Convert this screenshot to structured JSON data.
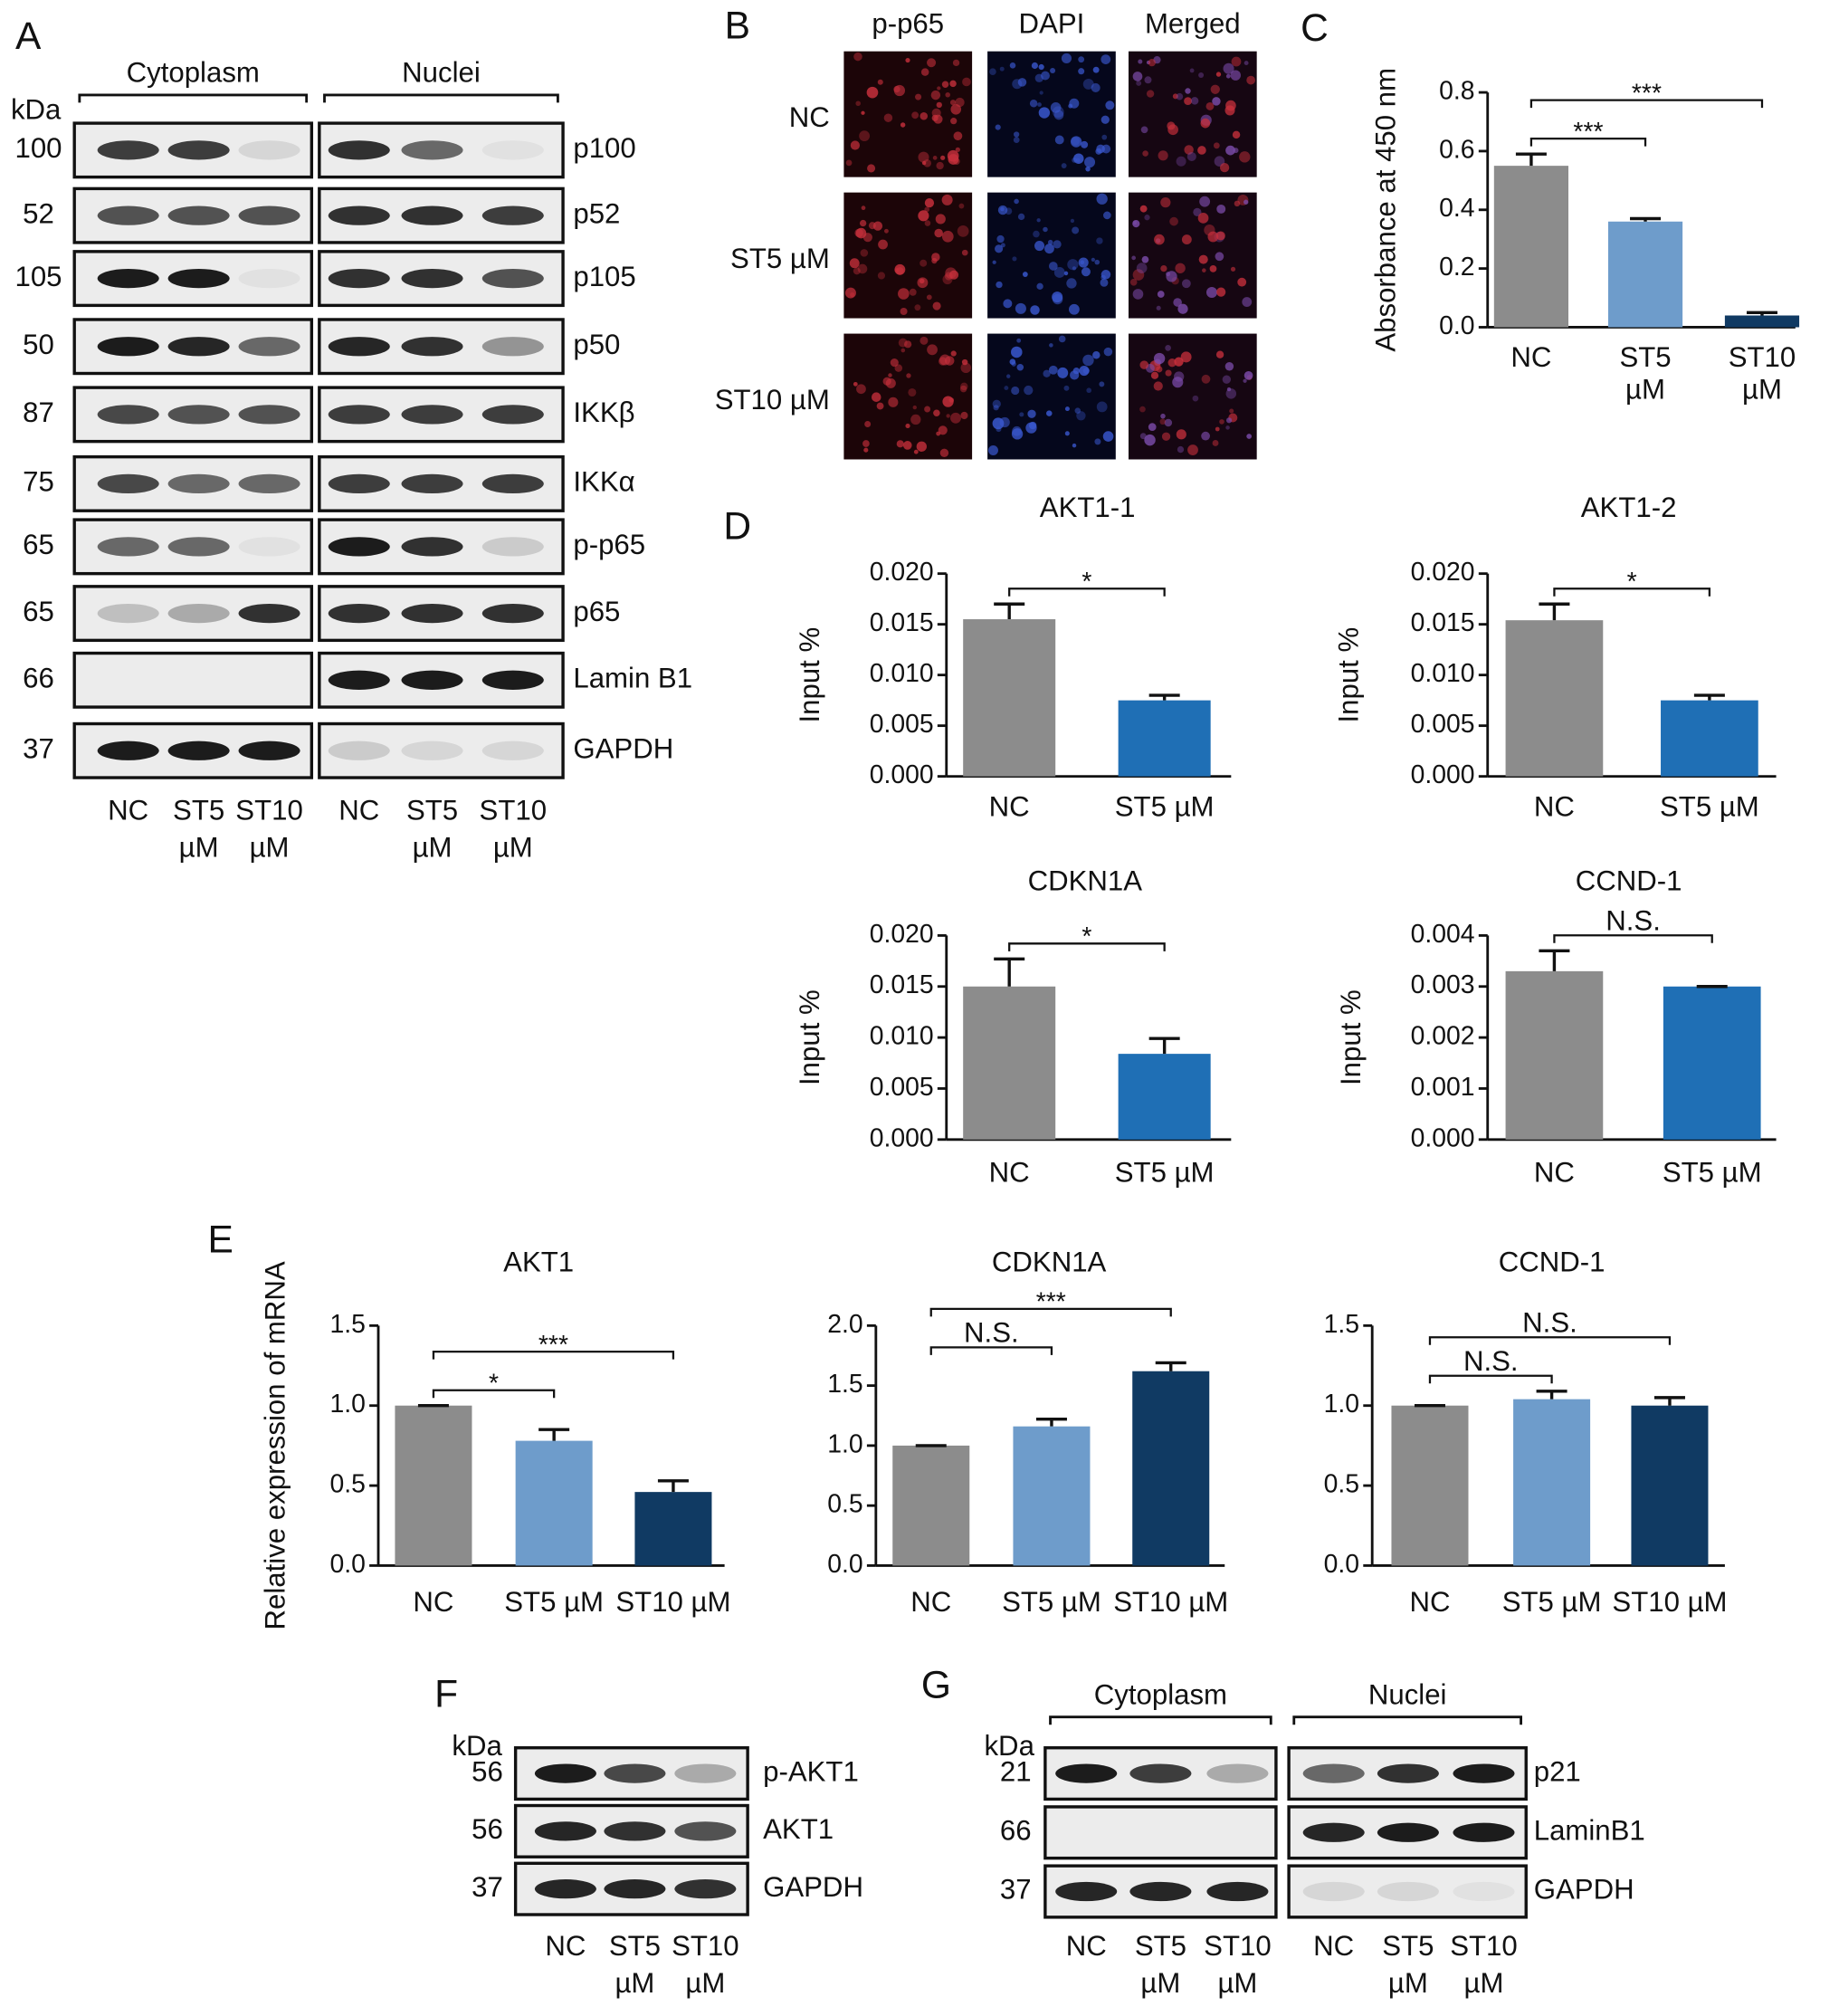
{
  "panel_labels": [
    "A",
    "B",
    "C",
    "D",
    "E",
    "F",
    "G"
  ],
  "blot_a": {
    "unit": "kDa",
    "sections": [
      "Cytoplasm",
      "Nuclei"
    ],
    "rows": [
      {
        "kda": 100,
        "protein": "p100"
      },
      {
        "kda": 52,
        "protein": "p52"
      },
      {
        "kda": 105,
        "protein": "p105"
      },
      {
        "kda": 50,
        "protein": "p50"
      },
      {
        "kda": 87,
        "protein": "IKKβ"
      },
      {
        "kda": 75,
        "protein": "IKKα"
      },
      {
        "kda": 65,
        "protein": "p-p65"
      },
      {
        "kda": 65,
        "protein": "p65"
      },
      {
        "kda": 66,
        "protein": "Lamin B1"
      },
      {
        "kda": 37,
        "protein": "GAPDH"
      }
    ],
    "lanes": [
      [
        "NC"
      ],
      [
        "ST5",
        "µM"
      ],
      [
        "ST10",
        "µM"
      ]
    ]
  },
  "imaging_b": {
    "columns": [
      "p-p65",
      "DAPI",
      "Merged"
    ],
    "rows": [
      "NC",
      "ST5 µM",
      "ST10 µM"
    ]
  },
  "chart_data": [
    {
      "type": "bar",
      "y_label": "Absorbance at 450 nm",
      "categories": [
        "NC",
        "ST5 µM",
        "ST10 µM"
      ],
      "wrap_labels": true,
      "values": [
        0.55,
        0.36,
        0.04
      ],
      "errors": [
        0.04,
        0.01,
        0.01
      ],
      "colors": [
        "#8c8c8c",
        "#6e9ccb",
        "#103a63"
      ],
      "significance": [
        null,
        "***",
        "***"
      ],
      "ylim": [
        0,
        0.8
      ],
      "yticks": [
        {
          "value": 0,
          "label": "0.0"
        },
        0.2,
        0.4,
        0.6,
        0.8
      ]
    },
    {
      "type": "bar",
      "title": "AKT1-1",
      "y_label": "Input %",
      "categories": [
        "NC",
        "ST5 µM"
      ],
      "values": [
        0.0155,
        0.0075
      ],
      "errors": [
        0.0015,
        0.0005
      ],
      "colors": [
        "#8c8c8c",
        "#1f6fb5"
      ],
      "significance": [
        null,
        "*"
      ],
      "ylim": [
        0,
        0.02
      ],
      "yticks": [
        {
          "value": 0,
          "label": "0.000"
        },
        {
          "value": 0.005,
          "label": "0.005"
        },
        {
          "value": 0.01,
          "label": "0.010"
        },
        {
          "value": 0.015,
          "label": "0.015"
        },
        {
          "value": 0.02,
          "label": "0.020"
        }
      ]
    },
    {
      "type": "bar",
      "title": "AKT1-2",
      "y_label": "Input %",
      "categories": [
        "NC",
        "ST5 µM"
      ],
      "values": [
        0.0154,
        0.0075
      ],
      "errors": [
        0.0016,
        0.0005
      ],
      "colors": [
        "#8c8c8c",
        "#1f6fb5"
      ],
      "significance": [
        null,
        "*"
      ],
      "ylim": [
        0,
        0.02
      ],
      "yticks": [
        {
          "value": 0,
          "label": "0.000"
        },
        {
          "value": 0.005,
          "label": "0.005"
        },
        {
          "value": 0.01,
          "label": "0.010"
        },
        {
          "value": 0.015,
          "label": "0.015"
        },
        {
          "value": 0.02,
          "label": "0.020"
        }
      ]
    },
    {
      "type": "bar",
      "title": "CDKN1A",
      "y_label": "Input %",
      "categories": [
        "NC",
        "ST5 µM"
      ],
      "values": [
        0.015,
        0.0084
      ],
      "errors": [
        0.0027,
        0.0015
      ],
      "colors": [
        "#8c8c8c",
        "#1f6fb5"
      ],
      "significance": [
        null,
        "*"
      ],
      "ylim": [
        0,
        0.02
      ],
      "yticks": [
        {
          "value": 0,
          "label": "0.000"
        },
        {
          "value": 0.005,
          "label": "0.005"
        },
        {
          "value": 0.01,
          "label": "0.010"
        },
        {
          "value": 0.015,
          "label": "0.015"
        },
        {
          "value": 0.02,
          "label": "0.020"
        }
      ]
    },
    {
      "type": "bar",
      "title": "CCND-1",
      "y_label": "Input %",
      "categories": [
        "NC",
        "ST5 µM"
      ],
      "values": [
        0.0033,
        0.003
      ],
      "errors": [
        0.0004,
        0
      ],
      "colors": [
        "#8c8c8c",
        "#1f6fb5"
      ],
      "significance": [
        null,
        "N.S."
      ],
      "ylim": [
        0,
        0.004
      ],
      "yticks": [
        {
          "value": 0,
          "label": "0.000"
        },
        {
          "value": 0.001,
          "label": "0.001"
        },
        {
          "value": 0.002,
          "label": "0.002"
        },
        {
          "value": 0.003,
          "label": "0.003"
        },
        {
          "value": 0.004,
          "label": "0.004"
        }
      ]
    },
    {
      "type": "bar",
      "title": "AKT1",
      "y_label": "Relative expression of mRNA",
      "categories": [
        "NC",
        "ST5 µM",
        "ST10 µM"
      ],
      "values": [
        1.0,
        0.78,
        0.46
      ],
      "errors": [
        0,
        0.07,
        0.07
      ],
      "colors": [
        "#8c8c8c",
        "#6e9ccb",
        "#103a63"
      ],
      "significance": [
        null,
        "*",
        "***"
      ],
      "ylim": [
        0,
        1.5
      ],
      "yticks": [
        {
          "value": 0,
          "label": "0.0"
        },
        0.5,
        {
          "value": 1,
          "label": "1.0"
        },
        1.5
      ]
    },
    {
      "type": "bar",
      "title": "CDKN1A",
      "categories": [
        "NC",
        "ST5 µM",
        "ST10 µM"
      ],
      "values": [
        1.0,
        1.16,
        1.62
      ],
      "errors": [
        0,
        0.06,
        0.07
      ],
      "colors": [
        "#8c8c8c",
        "#6e9ccb",
        "#103a63"
      ],
      "significance": [
        null,
        "N.S.",
        "***"
      ],
      "ylim": [
        0,
        2
      ],
      "yticks": [
        {
          "value": 0,
          "label": "0.0"
        },
        0.5,
        {
          "value": 1,
          "label": "1.0"
        },
        1.5,
        {
          "value": 2,
          "label": "2.0"
        }
      ]
    },
    {
      "type": "bar",
      "title": "CCND-1",
      "categories": [
        "NC",
        "ST5 µM",
        "ST10 µM"
      ],
      "values": [
        1.0,
        1.04,
        1.0
      ],
      "errors": [
        0,
        0.05,
        0.05
      ],
      "colors": [
        "#8c8c8c",
        "#6e9ccb",
        "#103a63"
      ],
      "significance": [
        null,
        "N.S.",
        "N.S."
      ],
      "ylim": [
        0,
        1.5
      ],
      "yticks": [
        {
          "value": 0,
          "label": "0.0"
        },
        0.5,
        {
          "value": 1,
          "label": "1.0"
        },
        1.5
      ]
    }
  ],
  "blot_f": {
    "unit": "kDa",
    "rows": [
      {
        "kda": 56,
        "protein": "p-AKT1"
      },
      {
        "kda": 56,
        "protein": "AKT1"
      },
      {
        "kda": 37,
        "protein": "GAPDH"
      }
    ],
    "lanes": [
      [
        "NC"
      ],
      [
        "ST5",
        "µM"
      ],
      [
        "ST10",
        "µM"
      ]
    ]
  },
  "blot_g": {
    "unit": "kDa",
    "sections": [
      "Cytoplasm",
      "Nuclei"
    ],
    "rows": [
      {
        "kda": 21,
        "protein": "p21"
      },
      {
        "kda": 66,
        "protein": "LaminB1"
      },
      {
        "kda": 37,
        "protein": "GAPDH"
      }
    ],
    "lanes": [
      [
        "NC"
      ],
      [
        "ST5",
        "µM"
      ],
      [
        "ST10",
        "µM"
      ]
    ]
  }
}
